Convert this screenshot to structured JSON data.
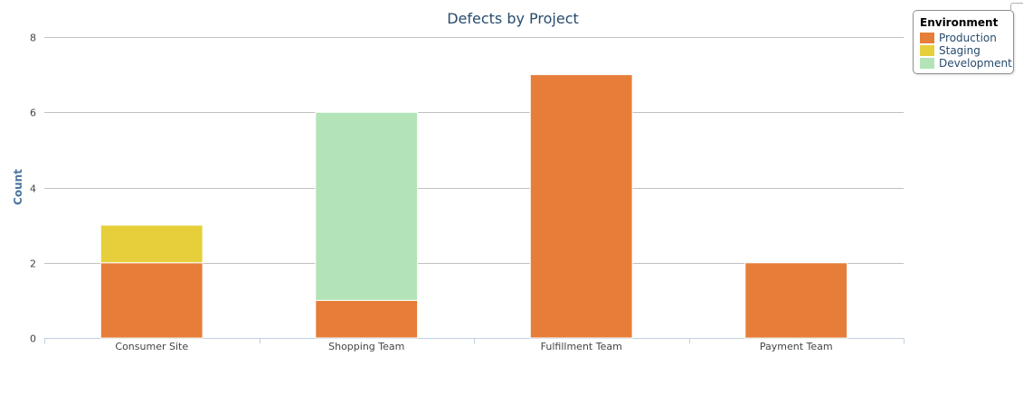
{
  "chart_data": {
    "type": "bar",
    "stacked": true,
    "title": "Defects by Project",
    "xlabel": "",
    "ylabel": "Count",
    "ylim": [
      0,
      8
    ],
    "yticks": [
      0,
      2,
      4,
      6,
      8
    ],
    "grid": true,
    "categories": [
      "Consumer Site",
      "Shopping Team",
      "Fulfillment Team",
      "Payment Team"
    ],
    "series": [
      {
        "name": "Production",
        "color": "#e67e3a",
        "values": [
          2,
          1,
          7,
          2
        ]
      },
      {
        "name": "Staging",
        "color": "#e6cf3a",
        "values": [
          1,
          0,
          0,
          0
        ]
      },
      {
        "name": "Development",
        "color": "#b3e4b7",
        "values": [
          0,
          5,
          0,
          0
        ]
      }
    ],
    "legend": {
      "title": "Environment",
      "placement": "top-right"
    }
  }
}
